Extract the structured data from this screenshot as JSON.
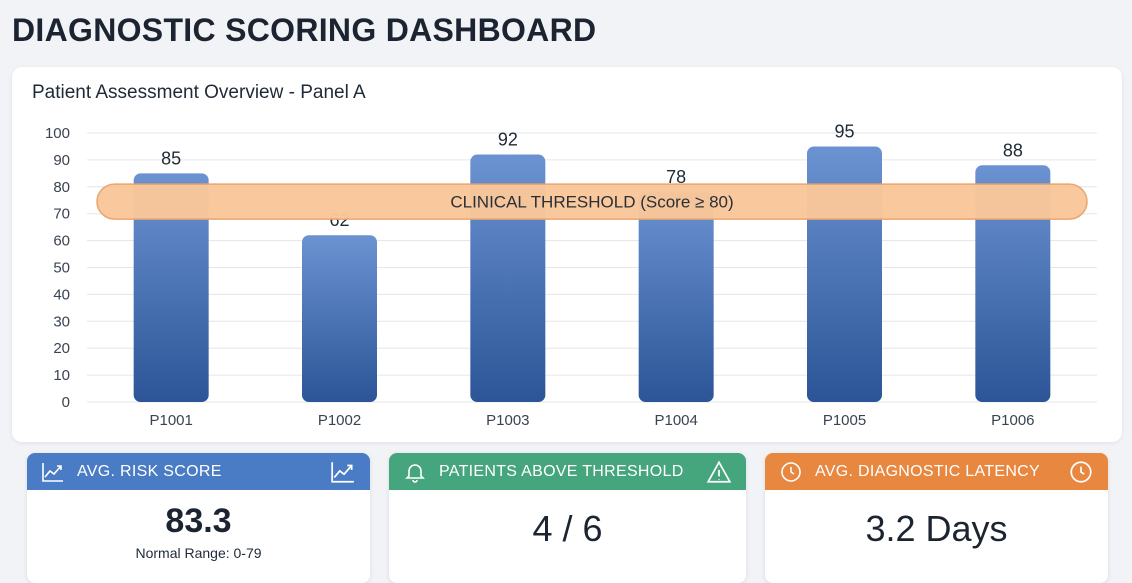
{
  "page_title": "DIAGNOSTIC SCORING DASHBOARD",
  "chart_data": {
    "type": "bar",
    "title": "Patient Assessment Overview - Panel A",
    "categories": [
      "P1001",
      "P1002",
      "P1003",
      "P1004",
      "P1005",
      "P1006"
    ],
    "values": [
      85,
      62,
      92,
      78,
      95,
      88
    ],
    "ylim": [
      0,
      100
    ],
    "yticks": [
      0,
      10,
      20,
      30,
      40,
      50,
      60,
      70,
      80,
      90,
      100
    ],
    "xlabel": "",
    "ylabel": "",
    "grid": true,
    "bar_color_top": "#6b93d2",
    "bar_color_bottom": "#2c5597",
    "threshold": {
      "label": "CLINICAL THRESHOLD (Score ≥ 80)",
      "value_low": 68,
      "value_high": 81,
      "fill": "#f9c79a",
      "stroke": "#e9a36b"
    }
  },
  "kpis": [
    {
      "title": "AVG. RISK SCORE",
      "value": "83.3",
      "subtext": "Normal Range: 0-79",
      "color": "#4a7cc5",
      "icon_left": "trend-chart-icon",
      "icon_right": "trend-chart-icon"
    },
    {
      "title": "PATIENTS ABOVE THRESHOLD",
      "value": "4 / 6",
      "color": "#45a57c",
      "icon_left": "bell-icon",
      "icon_right": "warning-triangle-icon"
    },
    {
      "title": "AVG. DIAGNOSTIC LATENCY",
      "value": "3.2 Days",
      "color": "#e8873f",
      "icon_left": "clock-icon",
      "icon_right": "clock-icon"
    }
  ]
}
